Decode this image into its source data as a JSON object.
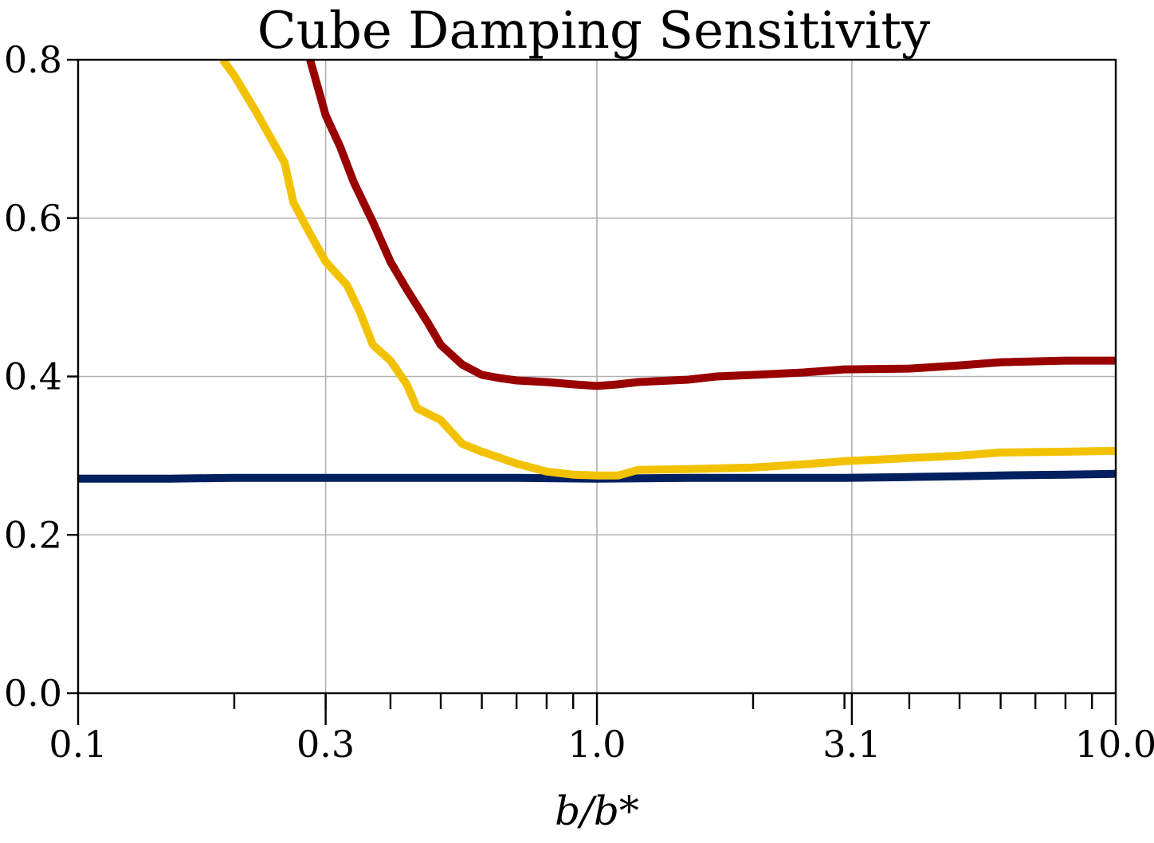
{
  "chart_data": {
    "type": "line",
    "title": "Cube Damping Sensitivity",
    "xlabel": "b/b*",
    "ylabel": "",
    "xscale": "log",
    "xlim": [
      0.1,
      10.0
    ],
    "ylim": [
      0.0,
      0.8
    ],
    "grid": true,
    "legend": "none",
    "x_tick_labels": [
      "0.1",
      "0.3",
      "1.0",
      "3.1",
      "10.0"
    ],
    "x_tick_values": [
      0.1,
      0.3,
      1.0,
      3.1,
      10.0
    ],
    "y_tick_labels": [
      "0.0",
      "0.2",
      "0.4",
      "0.6",
      "0.8"
    ],
    "y_tick_values": [
      0.0,
      0.2,
      0.4,
      0.6,
      0.8
    ],
    "series": [
      {
        "color": "#002060",
        "x": [
          0.1,
          0.15,
          0.2,
          0.3,
          0.5,
          0.7,
          1.0,
          1.5,
          2.0,
          3.0,
          4.0,
          5.0,
          6.0,
          8.0,
          10.0
        ],
        "values": [
          0.271,
          0.271,
          0.272,
          0.272,
          0.272,
          0.272,
          0.271,
          0.272,
          0.272,
          0.272,
          0.273,
          0.274,
          0.275,
          0.276,
          0.277
        ]
      },
      {
        "color": "#F2C200",
        "x": [
          0.19,
          0.2,
          0.22,
          0.25,
          0.26,
          0.28,
          0.3,
          0.33,
          0.35,
          0.37,
          0.4,
          0.43,
          0.45,
          0.5,
          0.55,
          0.6,
          0.7,
          0.8,
          0.9,
          1.0,
          1.1,
          1.2,
          1.5,
          2.0,
          2.5,
          3.0,
          3.5,
          4.0,
          5.0,
          6.0,
          8.0,
          10.0
        ],
        "values": [
          0.8,
          0.78,
          0.735,
          0.67,
          0.62,
          0.58,
          0.545,
          0.515,
          0.48,
          0.44,
          0.42,
          0.39,
          0.36,
          0.345,
          0.315,
          0.305,
          0.29,
          0.28,
          0.276,
          0.275,
          0.275,
          0.282,
          0.283,
          0.285,
          0.289,
          0.293,
          0.295,
          0.297,
          0.3,
          0.304,
          0.305,
          0.306
        ]
      },
      {
        "color": "#990000",
        "x": [
          0.28,
          0.3,
          0.32,
          0.34,
          0.37,
          0.4,
          0.43,
          0.47,
          0.5,
          0.55,
          0.6,
          0.65,
          0.7,
          0.8,
          0.9,
          1.0,
          1.1,
          1.2,
          1.5,
          1.7,
          2.0,
          2.5,
          3.0,
          4.0,
          5.0,
          6.0,
          8.0,
          10.0
        ],
        "values": [
          0.8,
          0.73,
          0.69,
          0.645,
          0.595,
          0.545,
          0.51,
          0.47,
          0.44,
          0.415,
          0.402,
          0.398,
          0.395,
          0.393,
          0.39,
          0.388,
          0.39,
          0.393,
          0.396,
          0.4,
          0.402,
          0.405,
          0.409,
          0.41,
          0.414,
          0.418,
          0.42,
          0.42
        ]
      }
    ]
  }
}
